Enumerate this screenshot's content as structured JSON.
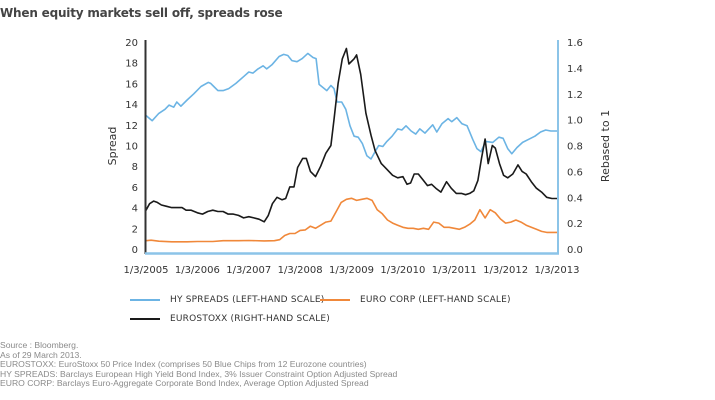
{
  "chart_data": {
    "type": "line",
    "title": "When equity markets sell off, spreads rose",
    "xlabel": "",
    "x_tick_labels": [
      "1/3/2005",
      "1/3/2006",
      "1/3/2007",
      "1/3/2008",
      "1/3/2009",
      "1/3/2010",
      "1/3/2011",
      "1/3/2012",
      "1/3/2013"
    ],
    "x_range": [
      2005.0,
      2013.0
    ],
    "y_left": {
      "label": "Spread",
      "range": [
        0,
        20
      ],
      "ticks": [
        "0",
        "2",
        "4",
        "6",
        "8",
        "10",
        "12",
        "14",
        "16",
        "18",
        "20"
      ]
    },
    "y_right": {
      "label": "Rebased to 1",
      "range": [
        0.0,
        1.6
      ],
      "ticks": [
        "0.0",
        "0.2",
        "0.4",
        "0.6",
        "0.8",
        "1.0",
        "1.2",
        "1.4",
        "1.6"
      ]
    },
    "grid": false,
    "legend_position": "bottom",
    "series": [
      {
        "name": "HY SPREADS (LEFT-HAND SCALE)",
        "axis": "left",
        "color": "#6cb4e4",
        "points": [
          [
            2005.0,
            12.9
          ],
          [
            2005.12,
            12.4
          ],
          [
            2005.25,
            13.1
          ],
          [
            2005.37,
            13.5
          ],
          [
            2005.45,
            13.9
          ],
          [
            2005.54,
            13.7
          ],
          [
            2005.6,
            14.2
          ],
          [
            2005.68,
            13.8
          ],
          [
            2005.8,
            14.4
          ],
          [
            2005.93,
            15.0
          ],
          [
            2006.07,
            15.7
          ],
          [
            2006.21,
            16.1
          ],
          [
            2006.26,
            16.0
          ],
          [
            2006.32,
            15.7
          ],
          [
            2006.4,
            15.3
          ],
          [
            2006.5,
            15.3
          ],
          [
            2006.61,
            15.5
          ],
          [
            2006.75,
            16.0
          ],
          [
            2006.91,
            16.7
          ],
          [
            2007.0,
            17.1
          ],
          [
            2007.08,
            17.0
          ],
          [
            2007.18,
            17.4
          ],
          [
            2007.28,
            17.7
          ],
          [
            2007.35,
            17.4
          ],
          [
            2007.45,
            17.8
          ],
          [
            2007.59,
            18.6
          ],
          [
            2007.68,
            18.8
          ],
          [
            2007.76,
            18.7
          ],
          [
            2007.84,
            18.2
          ],
          [
            2007.94,
            18.1
          ],
          [
            2008.04,
            18.4
          ],
          [
            2008.15,
            18.9
          ],
          [
            2008.25,
            18.5
          ],
          [
            2008.31,
            18.4
          ],
          [
            2008.37,
            15.9
          ],
          [
            2008.52,
            15.3
          ],
          [
            2008.6,
            15.8
          ],
          [
            2008.66,
            15.5
          ],
          [
            2008.72,
            14.2
          ],
          [
            2008.81,
            14.2
          ],
          [
            2008.89,
            13.5
          ],
          [
            2008.97,
            11.9
          ],
          [
            2009.05,
            10.9
          ],
          [
            2009.13,
            10.8
          ],
          [
            2009.21,
            10.2
          ],
          [
            2009.3,
            9.0
          ],
          [
            2009.38,
            8.7
          ],
          [
            2009.46,
            9.4
          ],
          [
            2009.53,
            10.0
          ],
          [
            2009.61,
            9.9
          ],
          [
            2009.69,
            10.4
          ],
          [
            2009.79,
            10.9
          ],
          [
            2009.9,
            11.6
          ],
          [
            2009.98,
            11.5
          ],
          [
            2010.06,
            11.9
          ],
          [
            2010.16,
            11.4
          ],
          [
            2010.25,
            11.1
          ],
          [
            2010.33,
            11.6
          ],
          [
            2010.43,
            11.2
          ],
          [
            2010.58,
            12.0
          ],
          [
            2010.66,
            11.3
          ],
          [
            2010.76,
            12.1
          ],
          [
            2010.88,
            12.6
          ],
          [
            2010.95,
            12.3
          ],
          [
            2011.05,
            12.7
          ],
          [
            2011.15,
            12.1
          ],
          [
            2011.25,
            11.9
          ],
          [
            2011.36,
            10.6
          ],
          [
            2011.44,
            9.7
          ],
          [
            2011.52,
            9.4
          ],
          [
            2011.61,
            10.4
          ],
          [
            2011.75,
            10.3
          ],
          [
            2011.87,
            10.8
          ],
          [
            2011.95,
            10.7
          ],
          [
            2012.04,
            9.7
          ],
          [
            2012.12,
            9.2
          ],
          [
            2012.22,
            9.8
          ],
          [
            2012.33,
            10.3
          ],
          [
            2012.45,
            10.6
          ],
          [
            2012.57,
            10.9
          ],
          [
            2012.68,
            11.3
          ],
          [
            2012.78,
            11.5
          ],
          [
            2012.88,
            11.4
          ],
          [
            2013.0,
            11.4
          ]
        ]
      },
      {
        "name": "EURO CORP (LEFT-HAND SCALE)",
        "axis": "left",
        "color": "#f0883a",
        "points": [
          [
            2005.0,
            0.8
          ],
          [
            2005.1,
            0.85
          ],
          [
            2005.25,
            0.75
          ],
          [
            2005.5,
            0.7
          ],
          [
            2005.8,
            0.7
          ],
          [
            2006.0,
            0.72
          ],
          [
            2006.3,
            0.72
          ],
          [
            2006.5,
            0.8
          ],
          [
            2006.8,
            0.8
          ],
          [
            2007.0,
            0.82
          ],
          [
            2007.3,
            0.78
          ],
          [
            2007.5,
            0.8
          ],
          [
            2007.6,
            0.9
          ],
          [
            2007.7,
            1.3
          ],
          [
            2007.8,
            1.5
          ],
          [
            2007.9,
            1.5
          ],
          [
            2008.0,
            1.8
          ],
          [
            2008.1,
            1.85
          ],
          [
            2008.2,
            2.2
          ],
          [
            2008.3,
            2.0
          ],
          [
            2008.4,
            2.3
          ],
          [
            2008.5,
            2.6
          ],
          [
            2008.6,
            2.7
          ],
          [
            2008.7,
            3.6
          ],
          [
            2008.8,
            4.5
          ],
          [
            2008.9,
            4.8
          ],
          [
            2009.0,
            4.9
          ],
          [
            2009.1,
            4.7
          ],
          [
            2009.2,
            4.8
          ],
          [
            2009.3,
            4.9
          ],
          [
            2009.4,
            4.7
          ],
          [
            2009.5,
            3.8
          ],
          [
            2009.6,
            3.4
          ],
          [
            2009.7,
            2.8
          ],
          [
            2009.8,
            2.5
          ],
          [
            2009.9,
            2.3
          ],
          [
            2010.0,
            2.1
          ],
          [
            2010.1,
            2.0
          ],
          [
            2010.2,
            2.0
          ],
          [
            2010.3,
            1.9
          ],
          [
            2010.4,
            2.0
          ],
          [
            2010.5,
            1.9
          ],
          [
            2010.6,
            2.6
          ],
          [
            2010.7,
            2.5
          ],
          [
            2010.8,
            2.1
          ],
          [
            2010.9,
            2.1
          ],
          [
            2011.0,
            2.0
          ],
          [
            2011.1,
            1.9
          ],
          [
            2011.2,
            2.1
          ],
          [
            2011.3,
            2.4
          ],
          [
            2011.4,
            2.8
          ],
          [
            2011.5,
            3.8
          ],
          [
            2011.6,
            3.0
          ],
          [
            2011.7,
            3.8
          ],
          [
            2011.8,
            3.5
          ],
          [
            2011.9,
            2.9
          ],
          [
            2012.0,
            2.5
          ],
          [
            2012.1,
            2.6
          ],
          [
            2012.2,
            2.8
          ],
          [
            2012.3,
            2.6
          ],
          [
            2012.4,
            2.3
          ],
          [
            2012.5,
            2.1
          ],
          [
            2012.6,
            1.9
          ],
          [
            2012.7,
            1.7
          ],
          [
            2012.8,
            1.6
          ],
          [
            2012.9,
            1.6
          ],
          [
            2013.0,
            1.6
          ]
        ]
      },
      {
        "name": "EUROSTOXX (RIGHT-HAND SCALE)",
        "axis": "right",
        "color": "#1a1a1a",
        "points": [
          [
            2005.0,
            0.3
          ],
          [
            2005.07,
            0.35
          ],
          [
            2005.15,
            0.37
          ],
          [
            2005.22,
            0.36
          ],
          [
            2005.3,
            0.34
          ],
          [
            2005.4,
            0.33
          ],
          [
            2005.5,
            0.32
          ],
          [
            2005.6,
            0.32
          ],
          [
            2005.7,
            0.32
          ],
          [
            2005.78,
            0.3
          ],
          [
            2005.88,
            0.3
          ],
          [
            2006.0,
            0.28
          ],
          [
            2006.1,
            0.27
          ],
          [
            2006.2,
            0.29
          ],
          [
            2006.3,
            0.3
          ],
          [
            2006.4,
            0.29
          ],
          [
            2006.5,
            0.29
          ],
          [
            2006.6,
            0.27
          ],
          [
            2006.7,
            0.27
          ],
          [
            2006.8,
            0.26
          ],
          [
            2006.9,
            0.24
          ],
          [
            2007.0,
            0.25
          ],
          [
            2007.1,
            0.24
          ],
          [
            2007.2,
            0.23
          ],
          [
            2007.3,
            0.21
          ],
          [
            2007.38,
            0.26
          ],
          [
            2007.46,
            0.35
          ],
          [
            2007.55,
            0.4
          ],
          [
            2007.65,
            0.38
          ],
          [
            2007.72,
            0.39
          ],
          [
            2007.8,
            0.48
          ],
          [
            2007.88,
            0.48
          ],
          [
            2007.95,
            0.63
          ],
          [
            2008.05,
            0.7
          ],
          [
            2008.12,
            0.7
          ],
          [
            2008.2,
            0.6
          ],
          [
            2008.3,
            0.56
          ],
          [
            2008.4,
            0.64
          ],
          [
            2008.5,
            0.74
          ],
          [
            2008.6,
            0.8
          ],
          [
            2008.66,
            1.0
          ],
          [
            2008.74,
            1.28
          ],
          [
            2008.82,
            1.47
          ],
          [
            2008.9,
            1.55
          ],
          [
            2008.95,
            1.43
          ],
          [
            2009.05,
            1.47
          ],
          [
            2009.1,
            1.5
          ],
          [
            2009.18,
            1.35
          ],
          [
            2009.28,
            1.05
          ],
          [
            2009.38,
            0.88
          ],
          [
            2009.46,
            0.76
          ],
          [
            2009.58,
            0.66
          ],
          [
            2009.68,
            0.62
          ],
          [
            2009.8,
            0.57
          ],
          [
            2009.9,
            0.55
          ],
          [
            2010.0,
            0.56
          ],
          [
            2010.08,
            0.5
          ],
          [
            2010.15,
            0.51
          ],
          [
            2010.22,
            0.58
          ],
          [
            2010.3,
            0.58
          ],
          [
            2010.4,
            0.53
          ],
          [
            2010.48,
            0.49
          ],
          [
            2010.56,
            0.5
          ],
          [
            2010.64,
            0.47
          ],
          [
            2010.74,
            0.44
          ],
          [
            2010.85,
            0.52
          ],
          [
            2010.94,
            0.47
          ],
          [
            2011.04,
            0.43
          ],
          [
            2011.14,
            0.43
          ],
          [
            2011.22,
            0.42
          ],
          [
            2011.3,
            0.43
          ],
          [
            2011.38,
            0.45
          ],
          [
            2011.46,
            0.53
          ],
          [
            2011.53,
            0.7
          ],
          [
            2011.6,
            0.85
          ],
          [
            2011.66,
            0.66
          ],
          [
            2011.74,
            0.8
          ],
          [
            2011.8,
            0.78
          ],
          [
            2011.88,
            0.66
          ],
          [
            2011.96,
            0.57
          ],
          [
            2012.04,
            0.55
          ],
          [
            2012.14,
            0.58
          ],
          [
            2012.24,
            0.65
          ],
          [
            2012.32,
            0.6
          ],
          [
            2012.4,
            0.58
          ],
          [
            2012.5,
            0.52
          ],
          [
            2012.6,
            0.47
          ],
          [
            2012.7,
            0.44
          ],
          [
            2012.8,
            0.4
          ],
          [
            2012.9,
            0.39
          ],
          [
            2013.0,
            0.39
          ]
        ]
      }
    ]
  },
  "legend": {
    "items": [
      {
        "label": "HY SPREADS (LEFT-HAND SCALE)",
        "color": "#6cb4e4"
      },
      {
        "label": "EURO CORP (LEFT-HAND SCALE)",
        "color": "#f0883a"
      },
      {
        "label": "EUROSTOXX (RIGHT-HAND SCALE)",
        "color": "#1a1a1a"
      }
    ]
  },
  "footnotes": [
    "Source : Bloomberg.",
    "As of 29 March 2013.",
    "EUROSTOXX: EuroStoxx 50 Price Index (comprises 50 Blue Chips from 12 Eurozone countries)",
    "HY SPREADS: Barclays European High Yield Bond Index, 3% Issuer Constraint Option Adjusted Spread",
    "EURO CORP: Barclays Euro-Aggregate Corporate Bond Index, Average Option Adjusted Spread"
  ],
  "colors": {
    "left_axis": "#333333",
    "right_axis": "#8cc4e8",
    "bottom_axis": "#8cc4e8"
  }
}
